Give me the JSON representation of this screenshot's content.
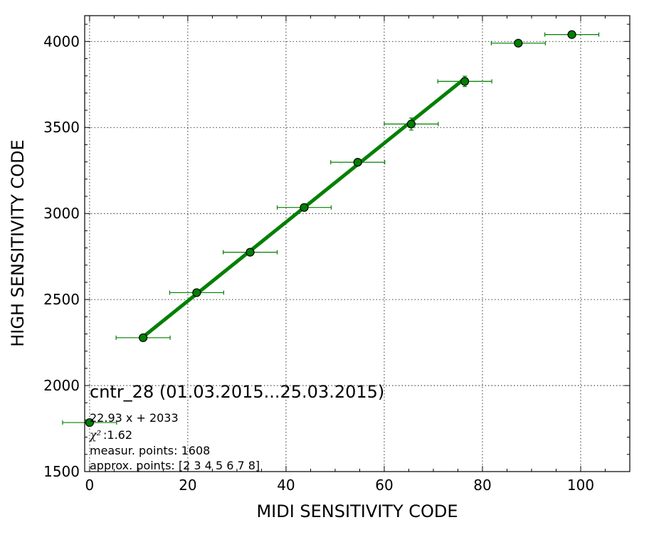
{
  "chart_data": {
    "type": "scatter",
    "xlabel": "MIDI SENSITIVITY CODE",
    "ylabel": "HIGH SENSITIVITY CODE",
    "xlim": [
      -1,
      110
    ],
    "ylim": [
      1500,
      4150
    ],
    "x_ticks": [
      0,
      20,
      40,
      60,
      80,
      100
    ],
    "y_ticks": [
      1500,
      2000,
      2500,
      3000,
      3500,
      4000
    ],
    "x_tick_labels": [
      "0",
      "20",
      "40",
      "60",
      "80",
      "100"
    ],
    "y_tick_labels": [
      "1500",
      "2000",
      "2500",
      "3000",
      "3500",
      "4000"
    ],
    "grid": true,
    "marker_color": "#008000",
    "points": [
      {
        "x": 0.0,
        "y": 1785,
        "xerr": 5.5,
        "yerr": 0
      },
      {
        "x": 10.9,
        "y": 2278,
        "xerr": 5.5,
        "yerr": 10
      },
      {
        "x": 21.8,
        "y": 2540,
        "xerr": 5.5,
        "yerr": 10
      },
      {
        "x": 32.7,
        "y": 2775,
        "xerr": 5.5,
        "yerr": 10
      },
      {
        "x": 43.7,
        "y": 3035,
        "xerr": 5.5,
        "yerr": 10
      },
      {
        "x": 54.6,
        "y": 3298,
        "xerr": 5.5,
        "yerr": 10
      },
      {
        "x": 65.5,
        "y": 3520,
        "xerr": 5.5,
        "yerr": 35
      },
      {
        "x": 76.4,
        "y": 3768,
        "xerr": 5.5,
        "yerr": 30
      },
      {
        "x": 87.3,
        "y": 3990,
        "xerr": 5.5,
        "yerr": 10
      },
      {
        "x": 98.2,
        "y": 4040,
        "xerr": 5.5,
        "yerr": 10
      }
    ],
    "fit": {
      "slope": 22.93,
      "intercept": 2033,
      "x_range": [
        10.9,
        76.4
      ]
    },
    "annotations": {
      "title": "cntr_28 (01.03.2015...25.03.2015)",
      "equation": "22.93 x + 2033",
      "chi_symbol": "χ²",
      "chi_value": " :1.62",
      "measur_points": "measur. points: 1608",
      "approx_points": "approx. points: [2 3 4 5 6 7 8]"
    }
  }
}
